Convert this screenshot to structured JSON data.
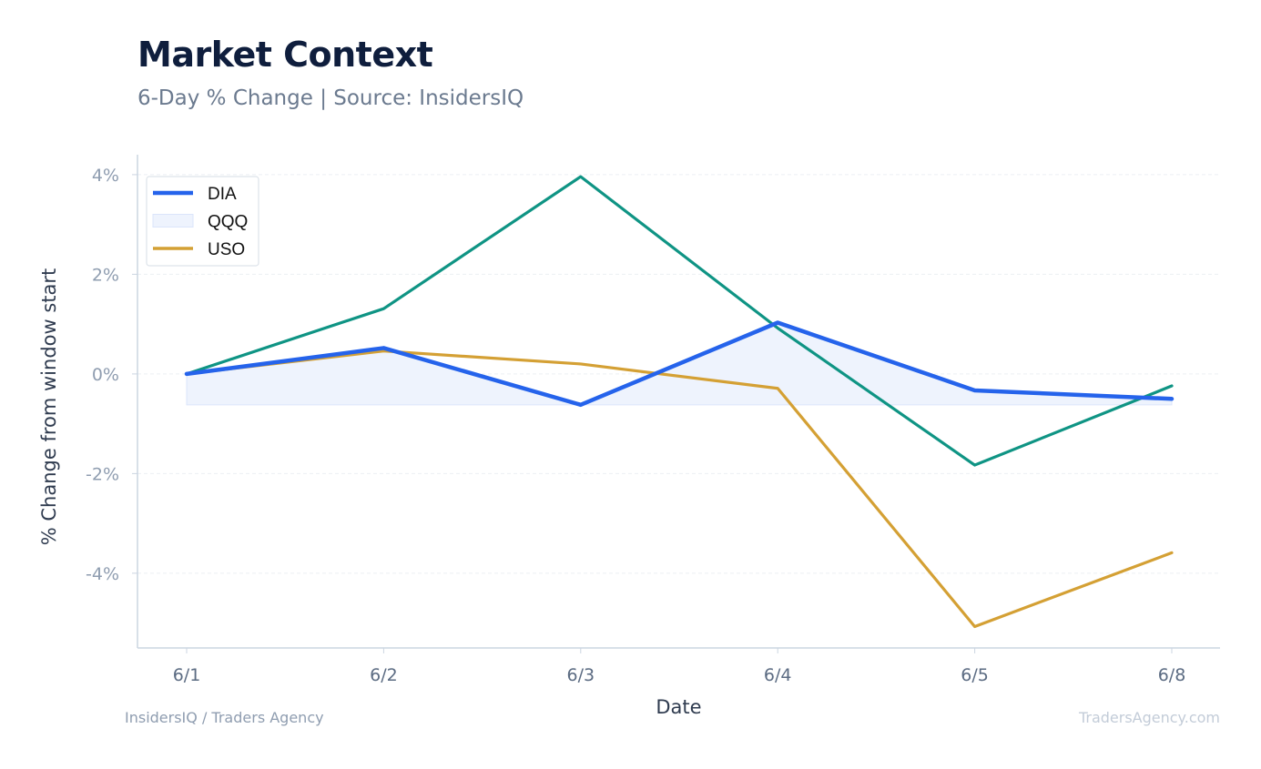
{
  "header": {
    "title": "Market Context",
    "subtitle": "6-Day % Change | Source: InsidersIQ"
  },
  "footer": {
    "left": "InsidersIQ / Traders Agency",
    "right": "TradersAgency.com"
  },
  "colors": {
    "dia": "#2563eb",
    "qqq_line": "#0f9484",
    "qqq_fill": "#eef3fd",
    "uso": "#d4a034",
    "axis": "#cbd5e1",
    "grid": "#eceff3",
    "tick_text": "#8f9db0"
  },
  "chart_data": {
    "type": "line",
    "title": "Market Context",
    "subtitle": "6-Day % Change | Source: InsidersIQ",
    "xlabel": "Date",
    "ylabel": "% Change from window start",
    "categories": [
      "6/1",
      "6/2",
      "6/3",
      "6/4",
      "6/5",
      "6/8"
    ],
    "ylim": [
      -5.5,
      4.4
    ],
    "yticks": [
      4,
      2,
      0,
      -2,
      -4
    ],
    "ytick_labels": [
      "4%",
      "2%",
      "0%",
      "-2%",
      "-4%"
    ],
    "grid": true,
    "legend_position": "top-left",
    "series": [
      {
        "name": "DIA",
        "values": [
          0.0,
          0.52,
          -0.62,
          1.03,
          -0.33,
          -0.5
        ],
        "style": "line"
      },
      {
        "name": "QQQ",
        "values": [
          0.0,
          1.31,
          3.96,
          0.92,
          -1.83,
          -0.24
        ],
        "style": "line",
        "legend_style": "fill-swatch",
        "fill_baseline": -0.62
      },
      {
        "name": "USO",
        "values": [
          0.0,
          0.46,
          0.2,
          -0.29,
          -5.07,
          -3.59
        ],
        "style": "line"
      }
    ]
  }
}
